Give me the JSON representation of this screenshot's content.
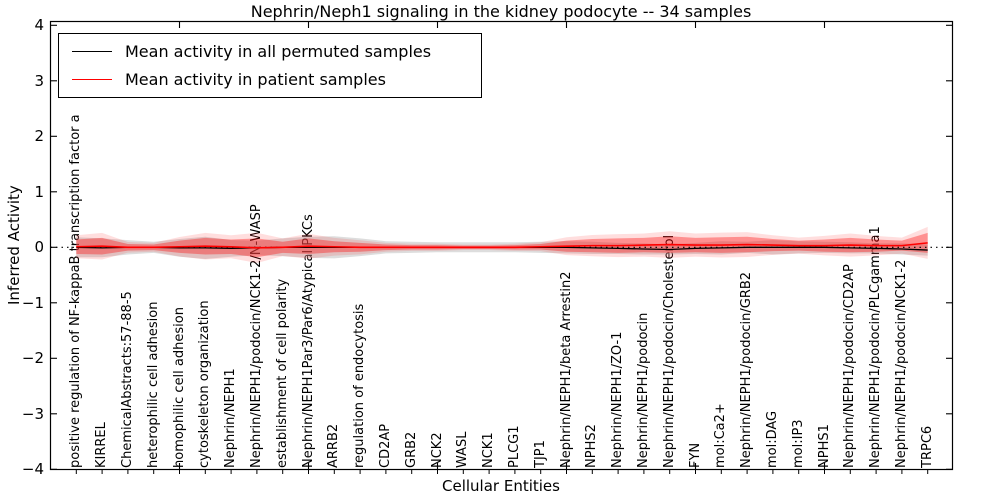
{
  "chart_data": {
    "type": "line",
    "title": "Nephrin/Neph1 signaling in the kidney podocyte -- 34 samples",
    "xlabel": "Cellular Entities",
    "ylabel": "Inferred Activity",
    "ylim": [
      -4,
      4
    ],
    "yticks": [
      4,
      3,
      2,
      1,
      0,
      -1,
      -2,
      -3,
      -4
    ],
    "ytick_labels": [
      "4",
      "3",
      "2",
      "1",
      "0",
      "−1",
      "−2",
      "−3",
      "−4"
    ],
    "xticks_major": [
      5,
      10,
      15,
      20,
      25,
      30
    ],
    "grid": false,
    "zero_line": "dotted",
    "legend_position": "upper left",
    "categories": [
      "positive regulation of NF-kappaB transcription factor a",
      "KIRREL",
      "ChemicalAbstracts:57-88-5",
      "heterophilic cell adhesion",
      "homophilic cell adhesion",
      "cytoskeleton organization",
      "Nephrin/NEPH1",
      "Nephrin/NEPH1/podocin/NCK1-2/N-WASP",
      "establishment of cell polarity",
      "Nephrin/NEPH1Par3/Par6/Atypical PKCs",
      "ARRB2",
      "regulation of endocytosis",
      "CD2AP",
      "GRB2",
      "NCK2",
      "WASL",
      "NCK1",
      "PLCG1",
      "TJP1",
      "Nephrin/NEPH1/beta Arrestin2",
      "NPHS2",
      "Nephrin/NEPH1/ZO-1",
      "Nephrin/NEPH1/podocin",
      "Nephrin/NEPH1/podocin/Cholesterol",
      "FYN",
      "mol:Ca2+",
      "Nephrin/NEPH1/podocin/GRB2",
      "mol:DAG",
      "mol:IP3",
      "NPHS1",
      "Nephrin/NEPH1/podocin/CD2AP",
      "Nephrin/NEPH1/podocin/PLCgamma1",
      "Nephrin/NEPH1/podocin/NCK1-2",
      "TRPC6"
    ],
    "series": [
      {
        "name": "Mean activity in all permuted samples",
        "color": "#000000",
        "values": [
          0,
          -0.01,
          0,
          0,
          -0.01,
          -0.01,
          -0.02,
          -0.01,
          0,
          0,
          0,
          0,
          0,
          0,
          0,
          0,
          0,
          0,
          0,
          0,
          -0.01,
          -0.02,
          -0.03,
          -0.04,
          -0.02,
          -0.01,
          0,
          0,
          0,
          0,
          -0.01,
          -0.02,
          -0.03,
          -0.05
        ]
      },
      {
        "name": "Mean activity in patient samples",
        "color": "#ff0000",
        "values": [
          0.01,
          0.02,
          0,
          0,
          0.01,
          0.02,
          0.01,
          -0.01,
          0,
          0.02,
          0.01,
          0,
          0,
          0,
          0,
          0,
          0,
          0,
          0.01,
          0.02,
          0.03,
          0.03,
          0.04,
          0.05,
          0.04,
          0.04,
          0.05,
          0.04,
          0.03,
          0.03,
          0.04,
          0.03,
          0.03,
          0.08
        ]
      }
    ],
    "bands": [
      {
        "name": "permuted-std-band",
        "series": "Mean activity in all permuted samples",
        "color": "#aaaaaa",
        "opacity": 0.4,
        "half_widths": [
          0.18,
          0.17,
          0.13,
          0.1,
          0.16,
          0.2,
          0.15,
          0.13,
          0.16,
          0.19,
          0.2,
          0.16,
          0.11,
          0.1,
          0.09,
          0.09,
          0.09,
          0.09,
          0.1,
          0.11,
          0.11,
          0.1,
          0.1,
          0.09,
          0.1,
          0.12,
          0.1,
          0.13,
          0.11,
          0.1,
          0.1,
          0.09,
          0.1,
          0.1
        ]
      },
      {
        "name": "patient-std-band",
        "series": "Mean activity in patient samples",
        "color": "#ff0000",
        "opacity": 0.35,
        "outer_opacity": 0.13,
        "outer_scale": 1.6,
        "half_widths": [
          0.13,
          0.15,
          0.06,
          0.05,
          0.11,
          0.15,
          0.13,
          0.17,
          0.1,
          0.14,
          0.1,
          0.08,
          0.05,
          0.04,
          0.04,
          0.03,
          0.03,
          0.04,
          0.05,
          0.1,
          0.12,
          0.13,
          0.13,
          0.15,
          0.13,
          0.14,
          0.14,
          0.11,
          0.09,
          0.11,
          0.13,
          0.11,
          0.09,
          0.18
        ]
      }
    ]
  }
}
